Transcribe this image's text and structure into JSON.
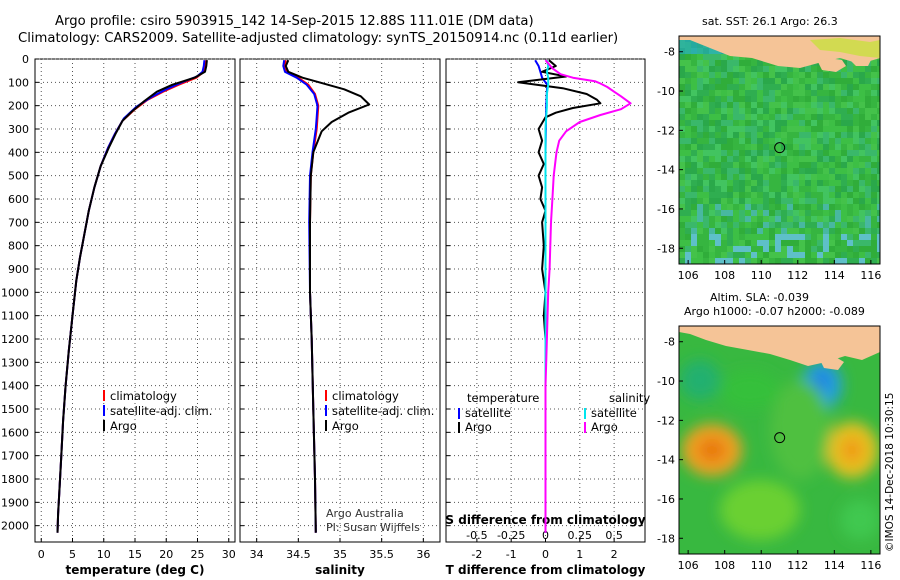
{
  "header": {
    "title_line1": "Argo profile: csiro 5903915_142 14-Sep-2015 12.88S 111.01E (DM data)",
    "title_line2": "Climatology: CARS2009. Satellite-adjusted climatology: synTS_20150914.nc (0.11d earlier)"
  },
  "colors": {
    "climatology": "#ff0000",
    "satellite": "#0000ff",
    "argo": "#000000",
    "sat_salinity": "#00e5ee",
    "argo_salinity": "#ff00ff",
    "land": "#f5c497",
    "ocean": "#3cc23c"
  },
  "legend_common": {
    "climatology": "climatology",
    "satellite_adj": "satellite-adj. clim.",
    "argo": "Argo"
  },
  "diff_legend": {
    "temperature_header": "temperature",
    "salinity_header": "salinity",
    "satellite": "satellite",
    "argo": "Argo"
  },
  "credits": {
    "line1": "Argo Australia",
    "line2": "PI: Susan Wijffels"
  },
  "imos_stamp": "©IMOS 14-Dec-2018 10:30:15",
  "maps": {
    "sst_title": "sat. SST: 26.1 Argo: 26.3",
    "sla_title_line1": "Altim. SLA: -0.039",
    "sla_title_line2": "Argo h1000: -0.07 h2000: -0.089",
    "xticks": [
      106,
      108,
      110,
      112,
      114,
      116
    ],
    "yticks": [
      -8,
      -10,
      -12,
      -14,
      -16,
      -18
    ],
    "xrange": [
      105.5,
      116.5
    ],
    "yrange": [
      -18.8,
      -7.2
    ],
    "float_position": {
      "lon": 111.01,
      "lat": -12.88
    }
  },
  "chart_data": [
    {
      "type": "line",
      "title": "",
      "xlabel": "temperature (deg C)",
      "ylabel": "",
      "xlim": [
        -1,
        31
      ],
      "ylim": [
        2070,
        0
      ],
      "xticks": [
        0,
        5,
        10,
        15,
        20,
        25,
        30
      ],
      "yticks": [
        0,
        100,
        200,
        300,
        400,
        500,
        600,
        700,
        800,
        900,
        1000,
        1100,
        1200,
        1300,
        1400,
        1500,
        1600,
        1700,
        1800,
        1900,
        2000
      ],
      "series": [
        {
          "name": "climatology",
          "color": "#ff0000",
          "points": [
            [
              26.4,
              5
            ],
            [
              26.2,
              30
            ],
            [
              26.0,
              55
            ],
            [
              24.8,
              80
            ],
            [
              22.0,
              110
            ],
            [
              19.5,
              140
            ],
            [
              17.0,
              175
            ],
            [
              15.0,
              215
            ],
            [
              13.0,
              265
            ],
            [
              11.8,
              320
            ],
            [
              10.7,
              380
            ],
            [
              9.5,
              460
            ],
            [
              8.5,
              550
            ],
            [
              7.6,
              650
            ],
            [
              6.9,
              750
            ],
            [
              6.2,
              850
            ],
            [
              5.6,
              950
            ],
            [
              5.0,
              1100
            ],
            [
              4.4,
              1250
            ],
            [
              3.9,
              1400
            ],
            [
              3.5,
              1550
            ],
            [
              3.2,
              1700
            ],
            [
              2.9,
              1850
            ],
            [
              2.7,
              1950
            ],
            [
              2.6,
              2030
            ]
          ]
        },
        {
          "name": "satellite-adj. clim.",
          "color": "#0000ff",
          "points": [
            [
              26.1,
              5
            ],
            [
              26.0,
              30
            ],
            [
              25.8,
              55
            ],
            [
              24.9,
              75
            ],
            [
              22.5,
              100
            ],
            [
              20.0,
              130
            ],
            [
              17.5,
              165
            ],
            [
              15.2,
              205
            ],
            [
              13.2,
              255
            ],
            [
              11.8,
              320
            ],
            [
              10.7,
              380
            ],
            [
              9.5,
              460
            ],
            [
              8.5,
              550
            ],
            [
              7.6,
              650
            ],
            [
              6.9,
              750
            ],
            [
              6.2,
              850
            ],
            [
              5.6,
              950
            ],
            [
              5.0,
              1100
            ],
            [
              4.4,
              1250
            ],
            [
              3.9,
              1400
            ],
            [
              3.5,
              1550
            ],
            [
              3.2,
              1700
            ],
            [
              2.9,
              1850
            ],
            [
              2.7,
              1950
            ],
            [
              2.6,
              2030
            ]
          ]
        },
        {
          "name": "Argo",
          "color": "#000000",
          "points": [
            [
              26.5,
              5
            ],
            [
              26.4,
              30
            ],
            [
              26.2,
              55
            ],
            [
              24.5,
              80
            ],
            [
              21.0,
              110
            ],
            [
              18.5,
              140
            ],
            [
              16.5,
              180
            ],
            [
              14.5,
              225
            ],
            [
              13.0,
              265
            ],
            [
              11.9,
              320
            ],
            [
              10.8,
              380
            ],
            [
              9.5,
              460
            ],
            [
              8.5,
              550
            ],
            [
              7.6,
              650
            ],
            [
              6.9,
              750
            ],
            [
              6.2,
              850
            ],
            [
              5.6,
              950
            ],
            [
              5.0,
              1100
            ],
            [
              4.4,
              1250
            ],
            [
              3.9,
              1400
            ],
            [
              3.5,
              1550
            ],
            [
              3.2,
              1700
            ],
            [
              2.9,
              1850
            ],
            [
              2.7,
              1950
            ],
            [
              2.6,
              2030
            ]
          ]
        }
      ]
    },
    {
      "type": "line",
      "title": "",
      "xlabel": "salinity",
      "ylabel": "",
      "xlim": [
        33.8,
        36.2
      ],
      "ylim": [
        2070,
        0
      ],
      "xticks": [
        34,
        34.5,
        35,
        35.5,
        36
      ],
      "xtick_labels": [
        "34",
        "34.5",
        "35",
        "35.5",
        "36"
      ],
      "series": [
        {
          "name": "climatology",
          "color": "#ff0000",
          "points": [
            [
              34.35,
              5
            ],
            [
              34.33,
              30
            ],
            [
              34.36,
              55
            ],
            [
              34.5,
              80
            ],
            [
              34.62,
              110
            ],
            [
              34.7,
              150
            ],
            [
              34.74,
              200
            ],
            [
              34.73,
              250
            ],
            [
              34.72,
              300
            ],
            [
              34.68,
              400
            ],
            [
              34.65,
              500
            ],
            [
              34.64,
              700
            ],
            [
              34.64,
              1000
            ],
            [
              34.66,
              1200
            ],
            [
              34.68,
              1500
            ],
            [
              34.7,
              1800
            ],
            [
              34.71,
              2030
            ]
          ]
        },
        {
          "name": "satellite-adj. clim.",
          "color": "#0000ff",
          "points": [
            [
              34.33,
              5
            ],
            [
              34.32,
              30
            ],
            [
              34.34,
              55
            ],
            [
              34.48,
              80
            ],
            [
              34.6,
              110
            ],
            [
              34.69,
              150
            ],
            [
              34.73,
              200
            ],
            [
              34.72,
              250
            ],
            [
              34.71,
              300
            ],
            [
              34.67,
              400
            ],
            [
              34.64,
              500
            ],
            [
              34.63,
              700
            ],
            [
              34.64,
              1000
            ],
            [
              34.66,
              1200
            ],
            [
              34.68,
              1500
            ],
            [
              34.7,
              1800
            ],
            [
              34.71,
              2030
            ]
          ]
        },
        {
          "name": "Argo",
          "color": "#000000",
          "points": [
            [
              34.38,
              5
            ],
            [
              34.35,
              30
            ],
            [
              34.38,
              55
            ],
            [
              34.55,
              80
            ],
            [
              34.75,
              100
            ],
            [
              35.05,
              130
            ],
            [
              35.25,
              160
            ],
            [
              35.35,
              195
            ],
            [
              35.1,
              230
            ],
            [
              34.9,
              270
            ],
            [
              34.78,
              310
            ],
            [
              34.68,
              400
            ],
            [
              34.65,
              500
            ],
            [
              34.64,
              700
            ],
            [
              34.64,
              1000
            ],
            [
              34.66,
              1200
            ],
            [
              34.68,
              1500
            ],
            [
              34.7,
              1800
            ],
            [
              34.71,
              2030
            ]
          ]
        }
      ]
    },
    {
      "type": "line",
      "title": "S difference from climatology",
      "xlabel": "T difference from climatology",
      "ylabel": "",
      "xlim": [
        -2.9,
        2.9
      ],
      "ylim": [
        2070,
        0
      ],
      "xticks": [
        -2,
        -1,
        0,
        1,
        2
      ],
      "xtick_labels": [
        "-2",
        "-1",
        "0",
        "1",
        "2"
      ],
      "s_axis": {
        "ticks": [
          -0.5,
          -0.25,
          0,
          0.25,
          0.5
        ],
        "labels": [
          "-0.5",
          "-0.25",
          "0",
          "0.25",
          "0.5"
        ],
        "range": [
          -0.725,
          0.725
        ]
      },
      "series": [
        {
          "name": "satellite (temperature)",
          "color": "#0000ff",
          "axis": "T",
          "points": [
            [
              -0.3,
              5
            ],
            [
              -0.2,
              30
            ],
            [
              -0.15,
              55
            ],
            [
              -0.1,
              80
            ],
            [
              0.05,
              110
            ],
            [
              0.02,
              200
            ],
            [
              0,
              400
            ],
            [
              0,
              2030
            ]
          ]
        },
        {
          "name": "Argo (temperature)",
          "color": "#000000",
          "axis": "T",
          "points": [
            [
              0.1,
              5
            ],
            [
              0.3,
              30
            ],
            [
              -0.1,
              55
            ],
            [
              0.6,
              75
            ],
            [
              -0.8,
              100
            ],
            [
              0.5,
              125
            ],
            [
              1.2,
              150
            ],
            [
              1.5,
              175
            ],
            [
              1.6,
              190
            ],
            [
              0.8,
              210
            ],
            [
              0.3,
              230
            ],
            [
              0.0,
              250
            ],
            [
              -0.2,
              300
            ],
            [
              -0.1,
              350
            ],
            [
              -0.2,
              400
            ],
            [
              -0.05,
              450
            ],
            [
              -0.2,
              500
            ],
            [
              -0.1,
              550
            ],
            [
              -0.15,
              600
            ],
            [
              0.0,
              650
            ],
            [
              -0.1,
              700
            ],
            [
              -0.05,
              800
            ],
            [
              -0.1,
              900
            ],
            [
              0.0,
              1000
            ],
            [
              -0.05,
              1100
            ],
            [
              0.0,
              1200
            ],
            [
              0.0,
              2030
            ]
          ]
        },
        {
          "name": "satellite (salinity)",
          "color": "#00e5ee",
          "axis": "S",
          "points": [
            [
              0.01,
              5
            ],
            [
              0.02,
              30
            ],
            [
              0.01,
              55
            ],
            [
              0.02,
              80
            ],
            [
              0.02,
              110
            ],
            [
              0.01,
              150
            ],
            [
              0.01,
              200
            ],
            [
              0.0,
              300
            ],
            [
              0.0,
              600
            ],
            [
              0.0,
              2030
            ]
          ]
        },
        {
          "name": "Argo (salinity)",
          "color": "#ff00ff",
          "axis": "S",
          "points": [
            [
              0.0,
              5
            ],
            [
              0.05,
              40
            ],
            [
              0.11,
              65
            ],
            [
              0.2,
              80
            ],
            [
              0.36,
              95
            ],
            [
              0.4,
              105
            ],
            [
              0.45,
              120
            ],
            [
              0.5,
              140
            ],
            [
              0.55,
              160
            ],
            [
              0.62,
              190
            ],
            [
              0.55,
              215
            ],
            [
              0.4,
              240
            ],
            [
              0.25,
              270
            ],
            [
              0.15,
              310
            ],
            [
              0.1,
              350
            ],
            [
              0.08,
              400
            ],
            [
              0.06,
              500
            ],
            [
              0.05,
              600
            ],
            [
              0.04,
              700
            ],
            [
              0.03,
              900
            ],
            [
              0.02,
              1000
            ],
            [
              0.01,
              1200
            ],
            [
              0.0,
              1400
            ],
            [
              0.0,
              2030
            ]
          ]
        }
      ]
    }
  ]
}
